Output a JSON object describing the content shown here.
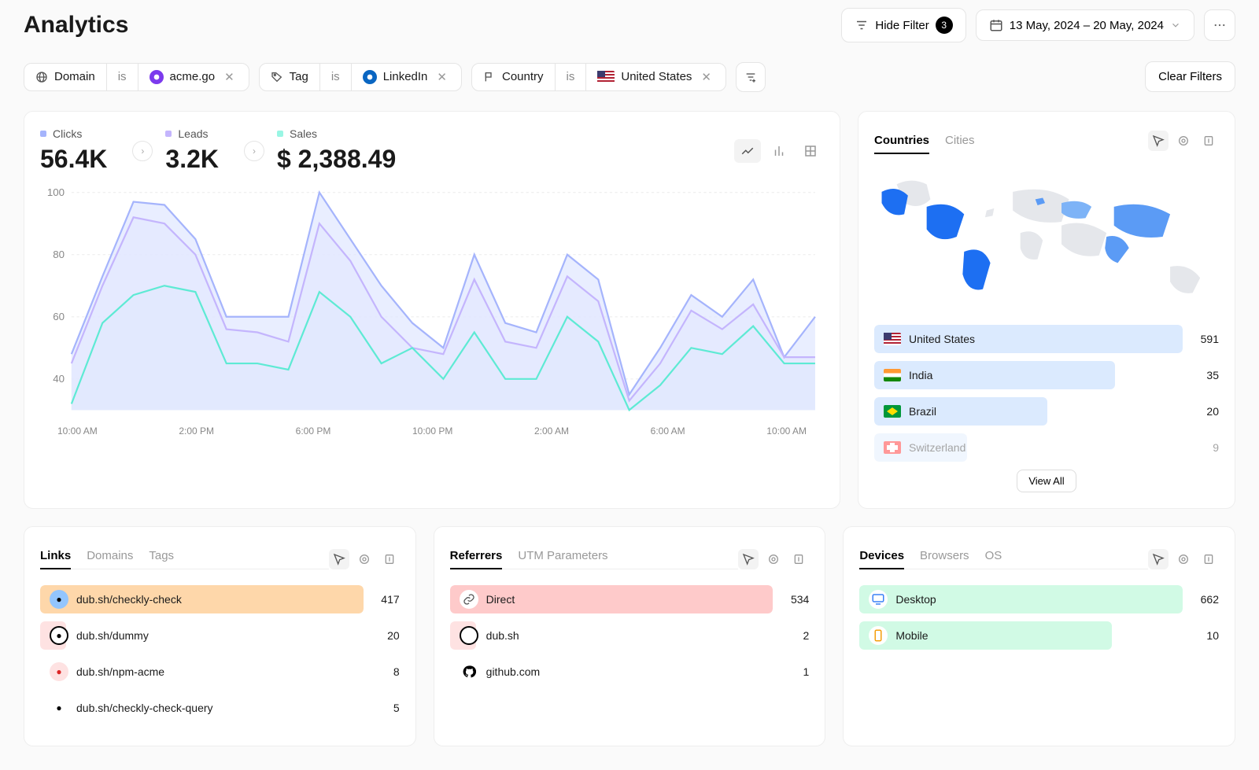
{
  "header": {
    "title": "Analytics",
    "hide_filter_label": "Hide Filter",
    "filter_count": "3",
    "date_range": "13 May, 2024  –  20 May, 2024"
  },
  "filters": [
    {
      "field_label": "Domain",
      "op": "is",
      "value": "acme.go",
      "icon_color": "#7c3aed"
    },
    {
      "field_label": "Tag",
      "op": "is",
      "value": "LinkedIn",
      "icon_color": "#0a66c2"
    },
    {
      "field_label": "Country",
      "op": "is",
      "value": "United States",
      "icon_flag": true
    }
  ],
  "clear_filters_label": "Clear Filters",
  "metrics": {
    "clicks": {
      "label": "Clicks",
      "value": "56.4K",
      "color": "#a5b4fc"
    },
    "leads": {
      "label": "Leads",
      "value": "3.2K",
      "color": "#c4b5fd"
    },
    "sales": {
      "label": "Sales",
      "value": "$ 2,388.49",
      "color": "#99f6e4"
    }
  },
  "chart": {
    "type": "area",
    "ylim": [
      30,
      100
    ],
    "yticks": [
      40,
      60,
      80,
      100
    ],
    "x_labels": [
      "10:00 AM",
      "2:00 PM",
      "6:00 PM",
      "10:00 PM",
      "2:00 AM",
      "6:00 AM",
      "10:00 AM"
    ],
    "series": [
      {
        "name": "clicks",
        "stroke": "#a5b4fc",
        "fill": "#e0e7ff",
        "values": [
          48,
          73,
          97,
          96,
          85,
          60,
          60,
          60,
          100,
          85,
          70,
          58,
          50,
          80,
          58,
          55,
          80,
          72,
          35,
          50,
          67,
          60,
          72,
          47,
          60
        ]
      },
      {
        "name": "leads",
        "stroke": "#c4b5fd",
        "fill": "#ede9fe",
        "values": [
          45,
          70,
          92,
          90,
          80,
          56,
          55,
          52,
          90,
          78,
          60,
          50,
          48,
          72,
          52,
          50,
          73,
          65,
          33,
          45,
          62,
          56,
          64,
          47,
          47
        ]
      },
      {
        "name": "sales",
        "stroke": "#5eead4",
        "fill": "#ccfbf1",
        "values": [
          32,
          58,
          67,
          70,
          68,
          45,
          45,
          43,
          68,
          60,
          45,
          50,
          40,
          55,
          40,
          40,
          60,
          52,
          30,
          38,
          50,
          48,
          57,
          45,
          45
        ]
      }
    ],
    "bg": "#ffffff",
    "grid_color": "#eeeeee"
  },
  "view_all_label": "View All",
  "countries_card": {
    "tabs": [
      "Countries",
      "Cities"
    ],
    "active_tab": 0,
    "max": 591,
    "bar_color": "#dbeafe",
    "rows": [
      {
        "label": "United States",
        "count": "591",
        "pct": 100,
        "flag": "us"
      },
      {
        "label": "India",
        "count": "35",
        "pct": 78,
        "flag": "in"
      },
      {
        "label": "Brazil",
        "count": "20",
        "pct": 56,
        "flag": "br"
      },
      {
        "label": "Switzerland",
        "count": "9",
        "pct": 30,
        "flag": "ch",
        "faded": true
      }
    ]
  },
  "links_card": {
    "tabs": [
      "Links",
      "Domains",
      "Tags"
    ],
    "active_tab": 0,
    "rows": [
      {
        "label": "dub.sh/checkly-check",
        "count": "417",
        "pct": 100,
        "bar_color": "#fed7aa",
        "icon_bg": "#93c5fd"
      },
      {
        "label": "dub.sh/dummy",
        "count": "20",
        "pct": 8,
        "bar_color": "#fee2e2",
        "icon_bg": "#ffffff",
        "icon_border": true
      },
      {
        "label": "dub.sh/npm-acme",
        "count": "8",
        "pct": 6,
        "bar_color": "transparent",
        "icon_bg": "#fee2e2",
        "icon_text_color": "#dc2626"
      },
      {
        "label": "dub.sh/checkly-check-query",
        "count": "5",
        "pct": 4,
        "bar_color": "transparent",
        "icon_bg": "#ffffff"
      }
    ]
  },
  "referrers_card": {
    "tabs": [
      "Referrers",
      "UTM Parameters"
    ],
    "active_tab": 0,
    "rows": [
      {
        "label": "Direct",
        "count": "534",
        "pct": 100,
        "bar_color": "#fecaca",
        "icon": "link"
      },
      {
        "label": "dub.sh",
        "count": "2",
        "pct": 8,
        "bar_color": "#fee2e2",
        "icon": "dot"
      },
      {
        "label": "github.com",
        "count": "1",
        "pct": 4,
        "bar_color": "transparent",
        "icon": "github"
      }
    ]
  },
  "devices_card": {
    "tabs": [
      "Devices",
      "Browsers",
      "OS"
    ],
    "active_tab": 0,
    "bar_color": "#d1fae5",
    "rows": [
      {
        "label": "Desktop",
        "count": "662",
        "pct": 100,
        "icon": "desktop"
      },
      {
        "label": "Mobile",
        "count": "10",
        "pct": 78,
        "icon": "mobile"
      }
    ]
  },
  "flags": {
    "us": {
      "stripes": [
        "#b22234",
        "#ffffff"
      ],
      "canton": "#3c3b6e"
    },
    "in": {
      "bands": [
        "#ff9933",
        "#ffffff",
        "#138808"
      ]
    },
    "br": {
      "bg": "#009739"
    },
    "ch": {
      "bg": "#ff0000"
    }
  }
}
